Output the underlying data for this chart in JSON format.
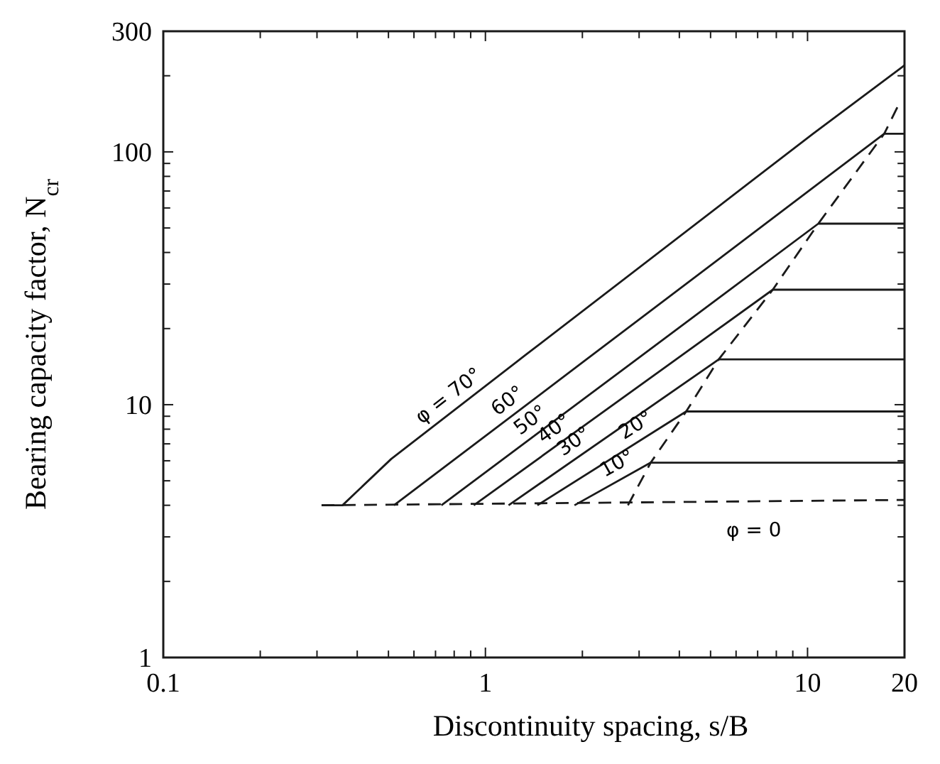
{
  "chart_data": {
    "type": "line",
    "xlabel": "Discontinuity spacing, s/B",
    "ylabel": "Bearing capacity factor, N$_{cr}$",
    "log": "xy",
    "xlim": [
      0.1,
      20
    ],
    "ylim": [
      1,
      300
    ],
    "xticks": [
      0.1,
      {
        "value": 0.2,
        "label": null
      },
      {
        "value": 0.3,
        "label": null
      },
      {
        "value": 0.4,
        "label": null
      },
      {
        "value": 0.5,
        "label": null
      },
      {
        "value": 0.6,
        "label": null
      },
      {
        "value": 0.7,
        "label": null
      },
      {
        "value": 0.8,
        "label": null
      },
      {
        "value": 0.9,
        "label": null
      },
      1,
      {
        "value": 2,
        "label": null
      },
      {
        "value": 3,
        "label": null
      },
      {
        "value": 4,
        "label": null
      },
      {
        "value": 5,
        "label": null
      },
      {
        "value": 6,
        "label": null
      },
      {
        "value": 7,
        "label": null
      },
      {
        "value": 8,
        "label": null
      },
      {
        "value": 9,
        "label": null
      },
      10,
      20
    ],
    "yticks": [
      1,
      {
        "value": 2,
        "label": null
      },
      {
        "value": 3,
        "label": null
      },
      {
        "value": 4,
        "label": null
      },
      {
        "value": 5,
        "label": null
      },
      {
        "value": 6,
        "label": null
      },
      {
        "value": 7,
        "label": null
      },
      {
        "value": 8,
        "label": null
      },
      {
        "value": 9,
        "label": null
      },
      10,
      {
        "value": 20,
        "label": null
      },
      {
        "value": 30,
        "label": null
      },
      {
        "value": 40,
        "label": null
      },
      {
        "value": 50,
        "label": null
      },
      {
        "value": 60,
        "label": null
      },
      {
        "value": 70,
        "label": null
      },
      {
        "value": 80,
        "label": null
      },
      {
        "value": 90,
        "label": null
      },
      100,
      {
        "value": 200,
        "label": null
      },
      300
    ],
    "series": [
      {
        "color": "#1a1a1a",
        "line_style": "solid",
        "x": [
          0.31,
          0.36,
          0.51,
          1.33,
          10.4,
          20
        ],
        "values": [
          4,
          4,
          6.1,
          15.7,
          118,
          220
        ]
      },
      {
        "color": "#1a1a1a",
        "line_style": "solid",
        "x": [
          0.52,
          17.3,
          20
        ],
        "values": [
          4,
          118,
          118
        ]
      },
      {
        "color": "#1a1a1a",
        "line_style": "solid",
        "x": [
          0.73,
          10.8,
          20
        ],
        "values": [
          4,
          52,
          52
        ]
      },
      {
        "color": "#1a1a1a",
        "line_style": "solid",
        "x": [
          0.92,
          7.8,
          20
        ],
        "values": [
          4,
          28.5,
          28.5
        ]
      },
      {
        "color": "#1a1a1a",
        "line_style": "solid",
        "x": [
          1.18,
          5.3,
          20
        ],
        "values": [
          4,
          15.1,
          15.1
        ]
      },
      {
        "color": "#1a1a1a",
        "line_style": "solid",
        "x": [
          1.45,
          4.2,
          20
        ],
        "values": [
          4,
          9.4,
          9.4
        ]
      },
      {
        "color": "#1a1a1a",
        "line_style": "solid",
        "x": [
          1.89,
          3.26,
          20
        ],
        "values": [
          4,
          5.9,
          5.9
        ]
      },
      {
        "color": "#1a1a1a",
        "line_style": "dashed",
        "x": [
          0.31,
          20
        ],
        "values": [
          4,
          4.2
        ]
      },
      {
        "color": "#1a1a1a",
        "line_style": "dashed",
        "x": [
          2.77,
          3.26,
          4.2,
          5.3,
          7.8,
          10.8,
          17.3,
          19
        ],
        "values": [
          4,
          5.9,
          9.4,
          15.1,
          28.5,
          52,
          118,
          150
        ]
      }
    ],
    "annotations": [
      {
        "text": "φ = 70°",
        "x": 0.82,
        "y": 9.74
      },
      {
        "text": "60°",
        "x": 1.25,
        "y": 9.3
      },
      {
        "text": "50°",
        "x": 1.47,
        "y": 7.8
      },
      {
        "text": "40°",
        "x": 1.74,
        "y": 7.2
      },
      {
        "text": "30°",
        "x": 2.0,
        "y": 6.4
      },
      {
        "text": "20°",
        "x": 3.1,
        "y": 7.4
      },
      {
        "text": "10°",
        "x": 2.7,
        "y": 5.2
      },
      {
        "text": "φ = 0",
        "x": 6.8,
        "y": 4.15
      }
    ]
  }
}
